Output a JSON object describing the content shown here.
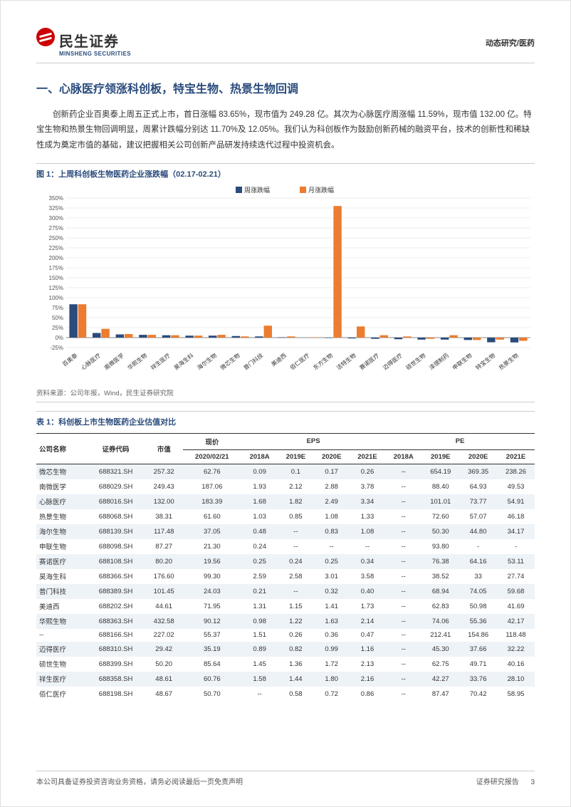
{
  "header": {
    "logo_cn": "民生证券",
    "logo_en": "MINSHENG SECURITIES",
    "right": "动态研究/医药"
  },
  "section_title": "一、心脉医疗领涨科创板，特宝生物、热景生物回调",
  "body_text": "创新药企业百奥泰上周五正式上市，首日涨幅 83.65%，现市值为 249.28 亿。其次为心脉医疗周涨幅 11.59%，现市值 132.00 亿。特宝生物和热景生物回调明显，周累计跌幅分别达 11.70%及 12.05%。我们认为科创板作为鼓励创新药械的融资平台，技术的创新性和稀缺性成为奠定市值的基础，建议把握相关公司创新产品研发持续迭代过程中投资机会。",
  "figure": {
    "title": "图 1：上周科创板生物医药企业涨跌幅（02.17-02.21）",
    "legend": {
      "week": "周涨跌幅",
      "month": "月涨跌幅"
    },
    "y_axis": {
      "min": -25,
      "max": 350,
      "step": 25,
      "suffix": "%"
    },
    "colors": {
      "week": "#2a4b7c",
      "month": "#ec7c2f",
      "grid": "#d9d9d9",
      "axis": "#888888",
      "text": "#555555",
      "bg": "#ffffff"
    },
    "categories": [
      "百奥泰",
      "心脉医疗",
      "南微医学",
      "华熙生物",
      "祥生医疗",
      "昊海生科",
      "海尔生物",
      "微芯生物",
      "普门科技",
      "美迪西",
      "佰仁医疗",
      "东方生物",
      "洁特生物",
      "赛诺医疗",
      "迈得医疗",
      "硕世生物",
      "泽璟制药",
      "申联生物",
      "特宝生物",
      "热景生物"
    ],
    "week_values": [
      83.6,
      11.6,
      8,
      7,
      6,
      5,
      5,
      4,
      3,
      1,
      0,
      -1,
      -2,
      -3,
      -4,
      -5,
      -5,
      -6,
      -11.7,
      -12.1
    ],
    "month_values": [
      83.6,
      22,
      9,
      7,
      6,
      5,
      7,
      3,
      30,
      3,
      1,
      330,
      28,
      6,
      3,
      -3,
      6,
      -6,
      -5,
      -8
    ],
    "bar_width": 0.35,
    "tick_fontsize": 8,
    "category_fontsize": 8
  },
  "source": "资料来源：公司年报，Wind，民生证券研究院",
  "table": {
    "title": "表 1：科创板上市生物医药企业估值对比",
    "headers": {
      "name": "公司名称",
      "code": "证券代码",
      "mktcap": "市值",
      "price": "现价",
      "price_date": "2020/02/21",
      "eps": "EPS",
      "pe": "PE",
      "y2018a": "2018A",
      "y2019e": "2019E",
      "y2020e": "2020E",
      "y2021e": "2021E"
    },
    "rows": [
      {
        "name": "微芯生物",
        "code": "688321.SH",
        "mktcap": "257.32",
        "price": "62.76",
        "eps": [
          "0.09",
          "0.1",
          "0.17",
          "0.26"
        ],
        "pe": [
          "--",
          "654.19",
          "369.35",
          "238.26"
        ]
      },
      {
        "name": "南微医学",
        "code": "688029.SH",
        "mktcap": "249.43",
        "price": "187.06",
        "eps": [
          "1.93",
          "2.12",
          "2.88",
          "3.78"
        ],
        "pe": [
          "--",
          "88.40",
          "64.93",
          "49.53"
        ]
      },
      {
        "name": "心脉医疗",
        "code": "688016.SH",
        "mktcap": "132.00",
        "price": "183.39",
        "eps": [
          "1.68",
          "1.82",
          "2.49",
          "3.34"
        ],
        "pe": [
          "--",
          "101.01",
          "73.77",
          "54.91"
        ]
      },
      {
        "name": "热景生物",
        "code": "688068.SH",
        "mktcap": "38.31",
        "price": "61.60",
        "eps": [
          "1.03",
          "0.85",
          "1.08",
          "1.33"
        ],
        "pe": [
          "--",
          "72.60",
          "57.07",
          "46.18"
        ]
      },
      {
        "name": "海尔生物",
        "code": "688139.SH",
        "mktcap": "117.48",
        "price": "37.05",
        "eps": [
          "0.48",
          "--",
          "0.83",
          "1.08"
        ],
        "pe": [
          "--",
          "50.30",
          "44.80",
          "34.17"
        ]
      },
      {
        "name": "申联生物",
        "code": "688098.SH",
        "mktcap": "87.27",
        "price": "21.30",
        "eps": [
          "0.24",
          "--",
          "--",
          "--"
        ],
        "pe": [
          "--",
          "93.80",
          "-",
          "-"
        ]
      },
      {
        "name": "赛诺医疗",
        "code": "688108.SH",
        "mktcap": "80.20",
        "price": "19.56",
        "eps": [
          "0.25",
          "0.24",
          "0.25",
          "0.34"
        ],
        "pe": [
          "--",
          "76.38",
          "64.16",
          "53.11"
        ]
      },
      {
        "name": "昊海生科",
        "code": "688366.SH",
        "mktcap": "176.60",
        "price": "99.30",
        "eps": [
          "2.59",
          "2.58",
          "3.01",
          "3.58"
        ],
        "pe": [
          "--",
          "38.52",
          "33",
          "27.74"
        ]
      },
      {
        "name": "普门科技",
        "code": "688389.SH",
        "mktcap": "101.45",
        "price": "24.03",
        "eps": [
          "0.21",
          "--",
          "0.32",
          "0.40"
        ],
        "pe": [
          "--",
          "68.94",
          "74.05",
          "59.68"
        ]
      },
      {
        "name": "美迪西",
        "code": "688202.SH",
        "mktcap": "44.61",
        "price": "71.95",
        "eps": [
          "1.31",
          "1.15",
          "1.41",
          "1.73"
        ],
        "pe": [
          "--",
          "62.83",
          "50.98",
          "41.69"
        ]
      },
      {
        "name": "华熙生物",
        "code": "688363.SH",
        "mktcap": "432.58",
        "price": "90.12",
        "eps": [
          "0.98",
          "1.22",
          "1.63",
          "2.14"
        ],
        "pe": [
          "--",
          "74.06",
          "55.36",
          "42.17"
        ]
      },
      {
        "name": "--",
        "code": "688166.SH",
        "mktcap": "227.02",
        "price": "55.37",
        "eps": [
          "1.51",
          "0.26",
          "0.36",
          "0.47"
        ],
        "pe": [
          "--",
          "212.41",
          "154.86",
          "118.48"
        ]
      },
      {
        "name": "迈得医疗",
        "code": "688310.SH",
        "mktcap": "29.42",
        "price": "35.19",
        "eps": [
          "0.89",
          "0.82",
          "0.99",
          "1.16"
        ],
        "pe": [
          "--",
          "45.30",
          "37.66",
          "32.22"
        ]
      },
      {
        "name": "硕世生物",
        "code": "688399.SH",
        "mktcap": "50.20",
        "price": "85.64",
        "eps": [
          "1.45",
          "1.36",
          "1.72",
          "2.13"
        ],
        "pe": [
          "--",
          "62.75",
          "49.71",
          "40.16"
        ]
      },
      {
        "name": "祥生医疗",
        "code": "688358.SH",
        "mktcap": "48.61",
        "price": "60.76",
        "eps": [
          "1.58",
          "1.44",
          "1.80",
          "2.16"
        ],
        "pe": [
          "--",
          "42.27",
          "33.76",
          "28.10"
        ]
      },
      {
        "name": "佰仁医疗",
        "code": "688198.SH",
        "mktcap": "48.67",
        "price": "50.70",
        "eps": [
          "--",
          "0.58",
          "0.72",
          "0.86"
        ],
        "pe": [
          "--",
          "87.47",
          "70.42",
          "58.95"
        ]
      }
    ]
  },
  "footer": {
    "left": "本公司具备证券投资咨询业务资格，请务必阅读最后一页免责声明",
    "right": "证券研究报告",
    "page": "3"
  }
}
